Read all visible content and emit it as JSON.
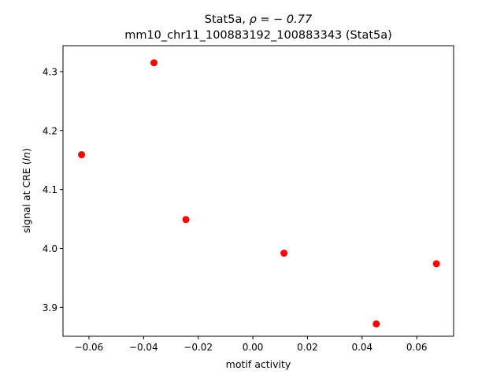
{
  "chart_data": {
    "type": "scatter",
    "title_line1_prefix": "Stat5a, ",
    "title_line1_math": "ρ = − 0.77",
    "title_line2": "mm10_chr11_100883192_100883343 (Stat5a)",
    "xlabel": "motif activity",
    "ylabel_prefix": "signal at CRE (",
    "ylabel_math": "ln",
    "ylabel_suffix": ")",
    "xlim": [
      -0.0695,
      0.0735
    ],
    "ylim": [
      3.851,
      4.344
    ],
    "xticks": [
      -0.06,
      -0.04,
      -0.02,
      0.0,
      0.02,
      0.04,
      0.06
    ],
    "xtick_labels": [
      "−0.06",
      "−0.04",
      "−0.02",
      "0.00",
      "0.02",
      "0.04",
      "0.06"
    ],
    "yticks": [
      3.9,
      4.0,
      4.1,
      4.2,
      4.3
    ],
    "ytick_labels": [
      "3.9",
      "4.0",
      "4.1",
      "4.2",
      "4.3"
    ],
    "grid": false,
    "marker_color": "#ff0000",
    "points": [
      {
        "x": -0.0627,
        "y": 4.159
      },
      {
        "x": -0.0362,
        "y": 4.315
      },
      {
        "x": -0.0245,
        "y": 4.049
      },
      {
        "x": 0.0114,
        "y": 3.992
      },
      {
        "x": 0.0452,
        "y": 3.872
      },
      {
        "x": 0.0672,
        "y": 3.974
      }
    ]
  }
}
